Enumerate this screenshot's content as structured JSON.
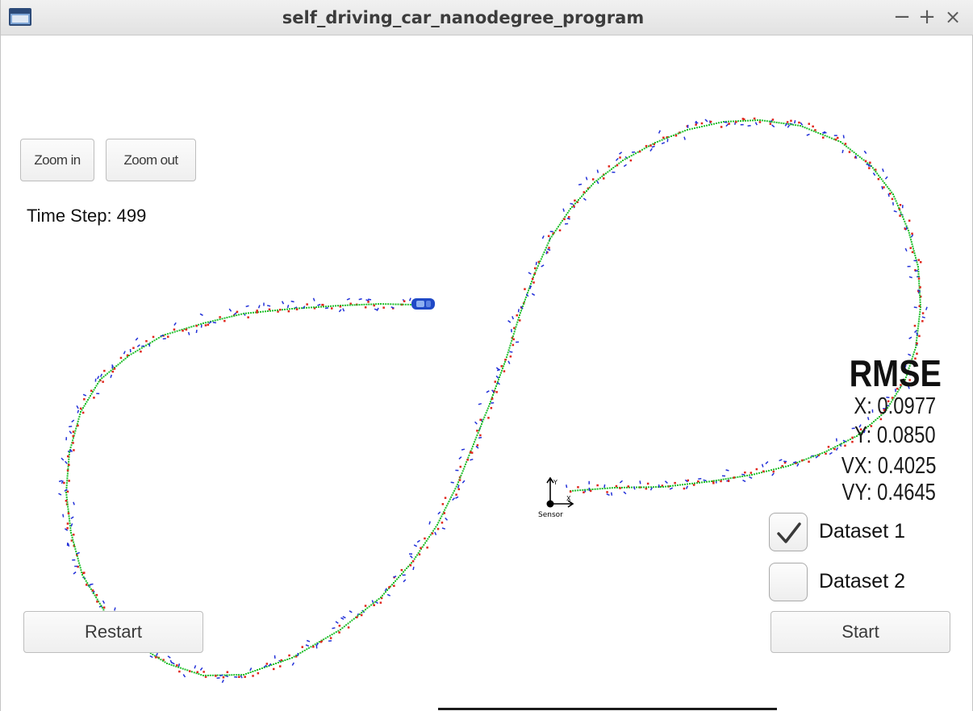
{
  "window": {
    "title": "self_driving_car_nanodegree_program",
    "controls": {
      "minimize": "−",
      "maximize": "+",
      "close": "×"
    }
  },
  "toolbar": {
    "zoom_in_label": "Zoom in",
    "zoom_out_label": "Zoom out"
  },
  "status": {
    "time_step": "Time Step: 499"
  },
  "rmse": {
    "title": "RMSE",
    "x": "X: 0.0977",
    "y": "Y: 0.0850",
    "vx": "VX: 0.4025",
    "vy": "VY: 0.4645"
  },
  "datasets": [
    {
      "label": "Dataset 1",
      "checked": true
    },
    {
      "label": "Dataset 2",
      "checked": false
    }
  ],
  "controls": {
    "restart_label": "Restart",
    "start_label": "Start"
  },
  "sensor": {
    "label": "Sensor",
    "y_axis": "Y",
    "x_axis": "X"
  },
  "colors": {
    "ground_truth": "#1fbf2a",
    "lidar": "#e0241b",
    "radar": "#2230d8",
    "car": "#1f49c6",
    "title_text": "#3c3c3c"
  }
}
